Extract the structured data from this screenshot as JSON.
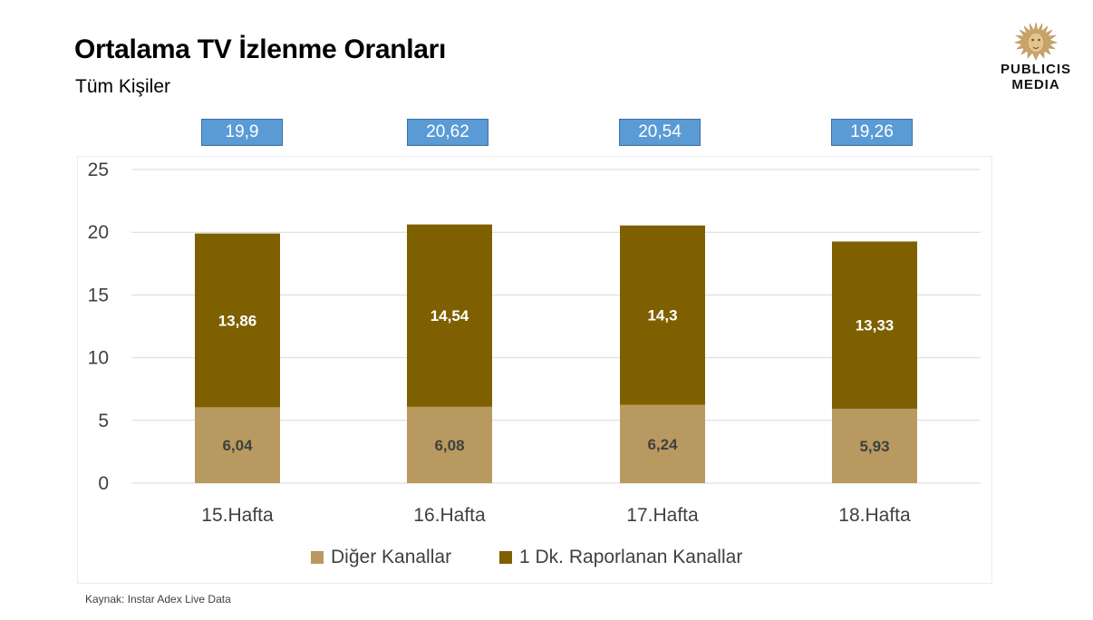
{
  "header": {
    "title": "Ortalama TV İzlenme Oranları",
    "subtitle": "Tüm Kişiler"
  },
  "logo": {
    "icon": "lion-head-icon",
    "line1": "PUBLICIS",
    "line2": "MEDIA",
    "color": "#c9a46a"
  },
  "totals": [
    "19,9",
    "20,62",
    "20,54",
    "19,26"
  ],
  "footer": {
    "source": "Kaynak: Instar  Adex Live Data"
  },
  "chart_data": {
    "type": "bar",
    "stacked": true,
    "categories": [
      "15.Hafta",
      "16.Hafta",
      "17.Hafta",
      "18.Hafta"
    ],
    "series": [
      {
        "name": "Diğer Kanallar",
        "values": [
          6.04,
          6.08,
          6.24,
          5.93
        ],
        "labels": [
          "6,04",
          "6,08",
          "6,24",
          "5,93"
        ],
        "color": "#b89a60",
        "label_color": "#404040"
      },
      {
        "name": "1 Dk. Raporlanan Kanallar",
        "values": [
          13.86,
          14.54,
          14.3,
          13.33
        ],
        "labels": [
          "13,86",
          "14,54",
          "14,3",
          "13,33"
        ],
        "color": "#7f6000",
        "label_color": "#ffffff"
      }
    ],
    "yticks": [
      "0",
      "5",
      "10",
      "15",
      "20",
      "25"
    ],
    "ylim": [
      0,
      25
    ],
    "grid": true,
    "legend_position": "bottom",
    "total_label_color": "#5b9bd5"
  }
}
